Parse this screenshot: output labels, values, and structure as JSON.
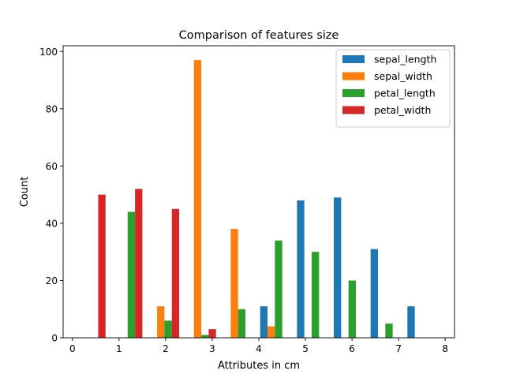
{
  "chart_data": {
    "type": "bar",
    "title": "Comparison of features size",
    "xlabel": "Attributes in cm",
    "ylabel": "Count",
    "xlim": [
      -0.2,
      8.2
    ],
    "ylim": [
      0,
      102
    ],
    "xticks": [
      0,
      1,
      2,
      3,
      4,
      5,
      6,
      7,
      8
    ],
    "yticks": [
      0,
      20,
      40,
      60,
      80,
      100
    ],
    "bin_edges": [
      0,
      0.79,
      1.58,
      2.37,
      3.16,
      3.95,
      4.74,
      5.53,
      6.32,
      7.11,
      7.9
    ],
    "legend_position": "upper right",
    "series": [
      {
        "name": "sepal_length",
        "color": "#1f77b4",
        "values": [
          0,
          0,
          0,
          0,
          0,
          11,
          48,
          49,
          31,
          11
        ]
      },
      {
        "name": "sepal_width",
        "color": "#ff7f0e",
        "values": [
          0,
          0,
          11,
          97,
          38,
          4,
          0,
          0,
          0,
          0
        ]
      },
      {
        "name": "petal_length",
        "color": "#2ca02c",
        "values": [
          0,
          44,
          6,
          1,
          10,
          34,
          30,
          20,
          5,
          0
        ]
      },
      {
        "name": "petal_width",
        "color": "#d62728",
        "values": [
          50,
          52,
          45,
          3,
          0,
          0,
          0,
          0,
          0,
          0
        ]
      }
    ]
  }
}
